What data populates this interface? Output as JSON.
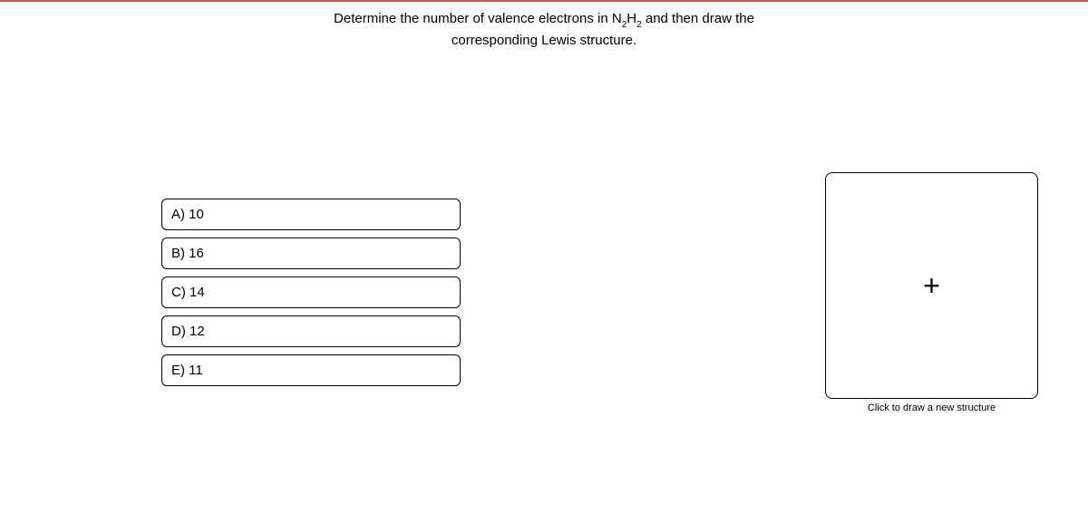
{
  "colors": {
    "top_border": "#d9534f",
    "background": "#ffffff",
    "border": "#000000",
    "text": "#000000"
  },
  "question": {
    "line1_pre": "Determine the number of valence electrons in N",
    "line1_sub1": "2",
    "line1_mid": "H",
    "line1_sub2": "2",
    "line1_post": " and then draw the",
    "line2": "corresponding Lewis structure."
  },
  "options": [
    {
      "label": "A) 10"
    },
    {
      "label": "B) 16"
    },
    {
      "label": "C) 14"
    },
    {
      "label": "D) 12"
    },
    {
      "label": "E) 11"
    }
  ],
  "structure": {
    "plus": "+",
    "caption": "Click to draw a new structure"
  }
}
